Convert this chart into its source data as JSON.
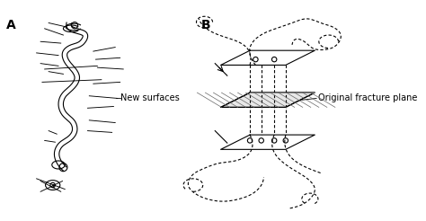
{
  "bg_color": "#ffffff",
  "line_color": "#000000",
  "label_A": "A",
  "label_B": "B",
  "text_new_surfaces": "New surfaces",
  "text_fracture_plane": "Original fracture plane",
  "font_size_label": 10,
  "font_size_text": 7
}
